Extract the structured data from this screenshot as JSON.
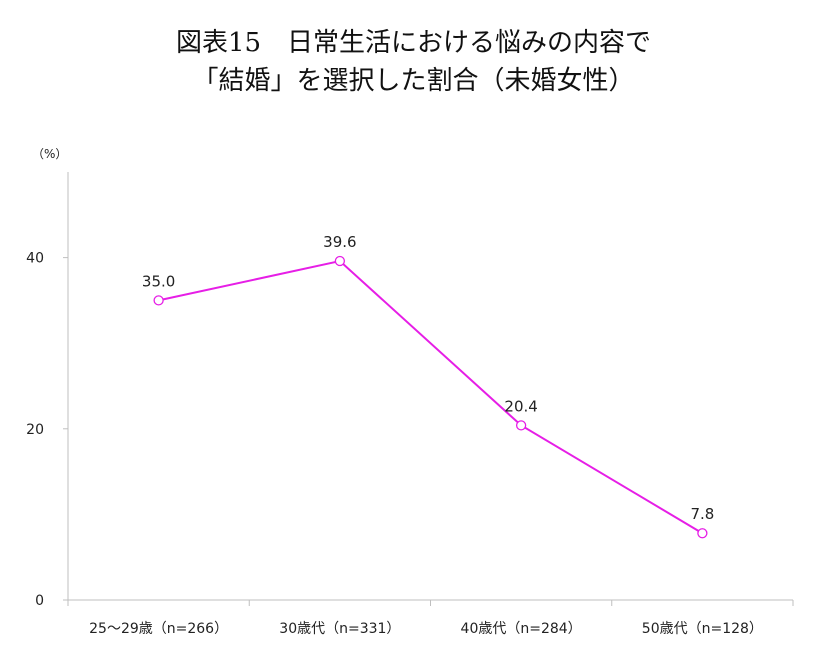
{
  "chart_data": {
    "type": "line",
    "title": "図表15　日常生活における悩みの内容で",
    "subtitle": "「結婚」を選択した割合（未婚女性）",
    "y_unit": "（%）",
    "xlabel": "",
    "ylabel": "",
    "categories": [
      "25～29歳（n=266）",
      "30歳代（n=331）",
      "40歳代（n=284）",
      "50歳代（n=128）"
    ],
    "values": [
      35.0,
      39.6,
      20.4,
      7.8
    ],
    "data_labels": [
      "35.0",
      "39.6",
      "20.4",
      "7.8"
    ],
    "ylim": [
      0,
      50
    ],
    "yticks": [
      0,
      20,
      40
    ],
    "grid": false,
    "legend": "none",
    "color": "#e61ee6"
  }
}
